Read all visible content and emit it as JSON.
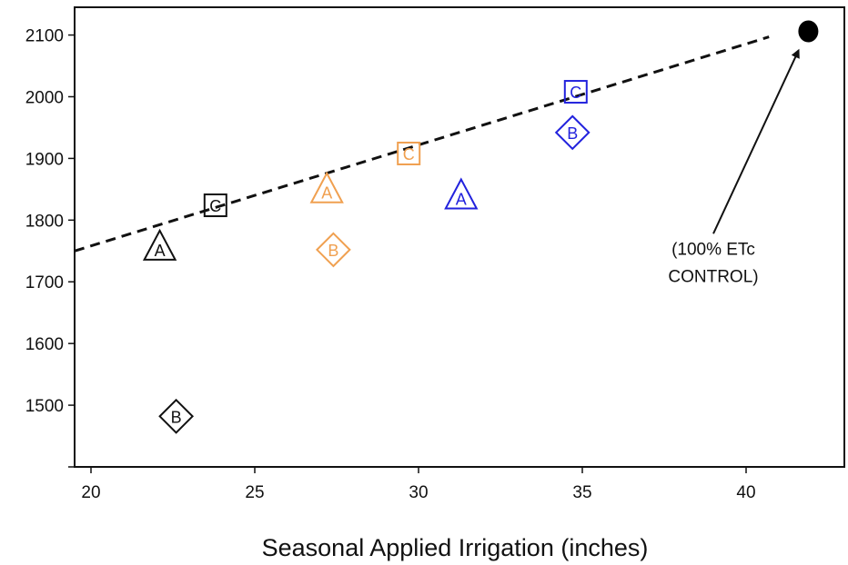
{
  "chart_data": {
    "type": "scatter",
    "title": "",
    "xlabel": "Seasonal Applied Irrigation (inches)",
    "ylabel": "",
    "xlim": [
      19.5,
      43
    ],
    "ylim": [
      1400,
      2145
    ],
    "x_ticks": [
      20,
      25,
      30,
      35,
      40
    ],
    "x_tick_labels": [
      "20",
      "25",
      "30",
      "35",
      "40"
    ],
    "y_ticks": [
      1500,
      1600,
      1700,
      1800,
      1900,
      2000,
      2100
    ],
    "y_tick_labels": [
      "1500",
      "1600",
      "1700",
      "1800",
      "1900",
      "2000",
      "2100"
    ],
    "grid": false,
    "colors": {
      "black": "#111111",
      "orange": "#f0a050",
      "blue": "#2222dd"
    },
    "points": [
      {
        "x": 22.1,
        "y": 1755,
        "shape": "triangle",
        "letter": "A",
        "color": "#111111"
      },
      {
        "x": 22.6,
        "y": 1482,
        "shape": "diamond",
        "letter": "B",
        "color": "#111111"
      },
      {
        "x": 23.8,
        "y": 1824,
        "shape": "square",
        "letter": "C",
        "color": "#111111"
      },
      {
        "x": 27.2,
        "y": 1848,
        "shape": "triangle",
        "letter": "A",
        "color": "#f0a050"
      },
      {
        "x": 27.4,
        "y": 1752,
        "shape": "diamond",
        "letter": "B",
        "color": "#f0a050"
      },
      {
        "x": 29.7,
        "y": 1908,
        "shape": "square",
        "letter": "C",
        "color": "#f0a050"
      },
      {
        "x": 31.3,
        "y": 1838,
        "shape": "triangle",
        "letter": "A",
        "color": "#2222dd"
      },
      {
        "x": 34.7,
        "y": 1942,
        "shape": "diamond",
        "letter": "B",
        "color": "#2222dd"
      },
      {
        "x": 34.8,
        "y": 2008,
        "shape": "square",
        "letter": "C",
        "color": "#2222dd"
      },
      {
        "x": 41.9,
        "y": 2106,
        "shape": "circle",
        "letter": "",
        "color": "#000000"
      }
    ],
    "trendline": {
      "style": "dashed",
      "x": [
        19.5,
        40.7
      ],
      "y": [
        1750,
        2097
      ]
    },
    "annotation": {
      "lines": [
        "(100% ETc",
        "CONTROL)"
      ],
      "text_at": {
        "x": 39.0,
        "y": 1744
      },
      "arrow_from": {
        "x": 39.0,
        "y": 1778
      },
      "arrow_to": {
        "x": 41.6,
        "y": 2075
      }
    }
  }
}
